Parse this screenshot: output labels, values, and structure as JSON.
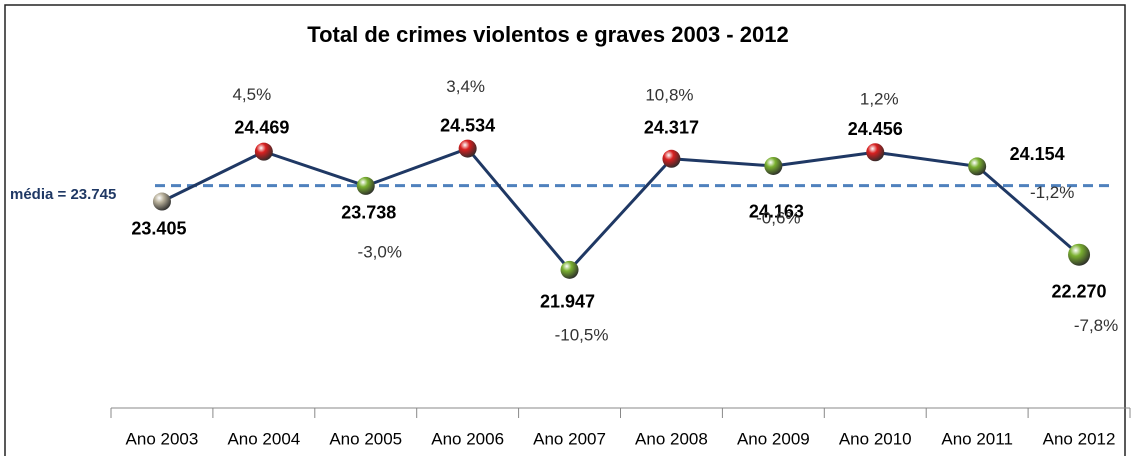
{
  "chart_data": {
    "type": "line",
    "title": "Total de crimes violentos e graves 2003 - 2012",
    "categories": [
      "Ano 2003",
      "Ano 2004",
      "Ano 2005",
      "Ano 2006",
      "Ano 2007",
      "Ano 2008",
      "Ano 2009",
      "Ano 2010",
      "Ano 2011",
      "Ano 2012"
    ],
    "values": [
      23405,
      24469,
      23738,
      24534,
      21947,
      24317,
      24163,
      24456,
      24154,
      22270
    ],
    "value_labels": [
      "23.405",
      "24.469",
      "23.738",
      "24.534",
      "21.947",
      "24.317",
      "24.163",
      "24.456",
      "24.154",
      "22.270"
    ],
    "change_labels": [
      null,
      "4,5%",
      "-3,0%",
      "3,4%",
      "-10,5%",
      "10,8%",
      "-0,6%",
      "1,2%",
      "-1,2%",
      "-7,8%"
    ],
    "point_colors": [
      "#b8b09a",
      "#d82020",
      "#7ab030",
      "#d82020",
      "#7ab030",
      "#d82020",
      "#7ab030",
      "#d82020",
      "#7ab030",
      "#7ab030"
    ],
    "color": "#1f3864",
    "mean": 23745,
    "mean_label": "média = 23.745",
    "mean_color": "#4f81bd",
    "ylim": [
      19000,
      27000
    ]
  }
}
